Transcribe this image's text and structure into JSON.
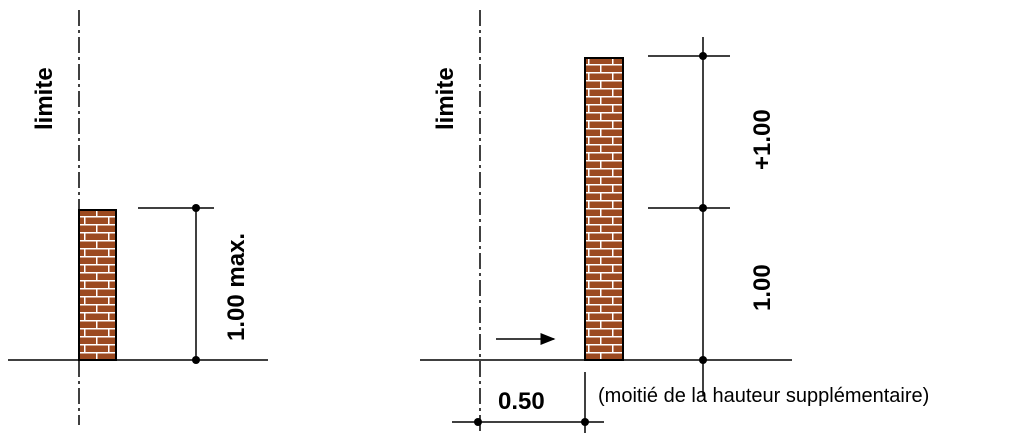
{
  "left_figure": {
    "boundary_label": "limite",
    "height_label": "1.00 max."
  },
  "right_figure": {
    "boundary_label": "limite",
    "base_height_label": "1.00",
    "extra_height_label": "+1.00",
    "setback_label": "0.50",
    "setback_note": "(moitié de la hauteur supplémentaire)"
  },
  "colors": {
    "brick": "#9c4a20",
    "mortar": "#ffffff",
    "line": "#000000"
  }
}
